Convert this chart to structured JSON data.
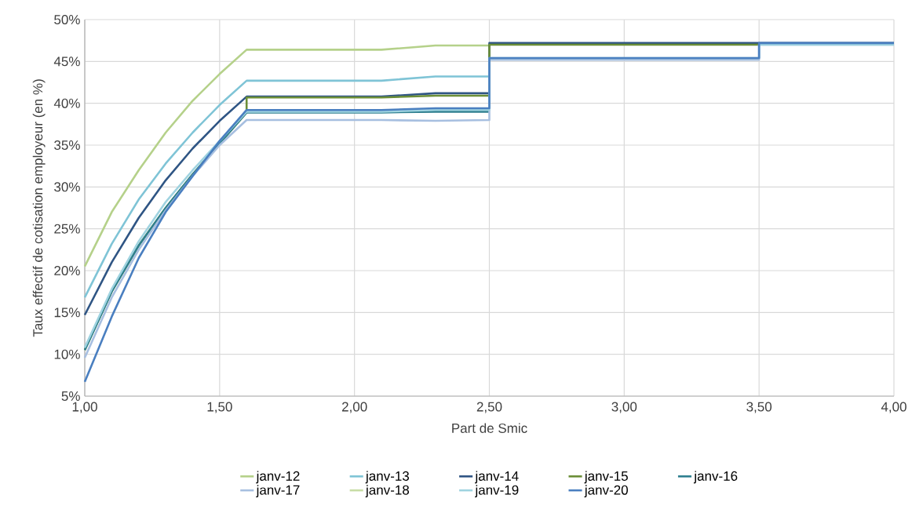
{
  "chart_data": {
    "type": "line",
    "xlabel": "Part de Smic",
    "ylabel": "Taux effectif de cotisation employeur (en %)",
    "xlim": [
      1,
      4
    ],
    "ylim": [
      5,
      50
    ],
    "xticks": [
      {
        "value": 1,
        "label": "1,00"
      },
      {
        "value": 1.5,
        "label": "1,50"
      },
      {
        "value": 2,
        "label": "2,00"
      },
      {
        "value": 2.5,
        "label": "2,50"
      },
      {
        "value": 3,
        "label": "3,00"
      },
      {
        "value": 3.5,
        "label": "3,50"
      },
      {
        "value": 4,
        "label": "4,00"
      }
    ],
    "yticks": [
      {
        "value": 5,
        "label": "5%"
      },
      {
        "value": 10,
        "label": "10%"
      },
      {
        "value": 15,
        "label": "15%"
      },
      {
        "value": 20,
        "label": "20%"
      },
      {
        "value": 25,
        "label": "25%"
      },
      {
        "value": 30,
        "label": "30%"
      },
      {
        "value": 35,
        "label": "35%"
      },
      {
        "value": 40,
        "label": "40%"
      },
      {
        "value": 45,
        "label": "45%"
      },
      {
        "value": 50,
        "label": "50%"
      }
    ],
    "grid": true,
    "legend": "bottom",
    "marker": "none",
    "line_style": "solid",
    "series": [
      {
        "name": "janv-12",
        "color": "#b5d18a",
        "x": [
          1,
          1.1,
          1.2,
          1.3,
          1.4,
          1.5,
          1.6,
          2.1,
          2.3,
          2.5
        ],
        "values": [
          20.5,
          27,
          32,
          36.5,
          40.3,
          43.5,
          46.4,
          46.4,
          46.9,
          46.9
        ]
      },
      {
        "name": "janv-13",
        "color": "#7fc4d6",
        "x": [
          1,
          1.1,
          1.2,
          1.3,
          1.4,
          1.5,
          1.6,
          2.1,
          2.3,
          2.5
        ],
        "values": [
          16.8,
          23.2,
          28.5,
          32.8,
          36.5,
          39.8,
          42.7,
          42.7,
          43.2,
          43.2
        ]
      },
      {
        "name": "janv-14",
        "color": "#2f5584",
        "x": [
          1,
          1.1,
          1.2,
          1.3,
          1.4,
          1.5,
          1.6,
          2.1,
          2.3,
          2.5,
          2.5,
          3.5,
          4
        ],
        "values": [
          14.7,
          21,
          26.3,
          30.8,
          34.6,
          37.9,
          40.8,
          40.8,
          41.2,
          41.2,
          47.2,
          47.2,
          47.2
        ]
      },
      {
        "name": "janv-15",
        "color": "#6b8e37",
        "x": [
          1,
          1.1,
          1.2,
          1.3,
          1.4,
          1.5,
          1.6,
          1.6,
          2.1,
          2.3,
          2.5,
          2.5,
          3.5
        ],
        "values": [
          10.5,
          17.5,
          23,
          27.5,
          31.5,
          35.2,
          38.9,
          40.7,
          40.7,
          40.9,
          40.9,
          47,
          47
        ]
      },
      {
        "name": "janv-16",
        "color": "#2e7f8f",
        "x": [
          1,
          1.1,
          1.2,
          1.3,
          1.4,
          1.5,
          1.6,
          2.1,
          2.3,
          2.5
        ],
        "values": [
          10.5,
          17.5,
          23,
          27.5,
          31.5,
          35.2,
          38.9,
          38.9,
          39,
          39
        ]
      },
      {
        "name": "janv-17",
        "color": "#a7bfe0",
        "x": [
          1,
          1.1,
          1.2,
          1.3,
          1.4,
          1.5,
          1.6,
          2.1,
          2.3,
          2.5,
          2.5,
          3.5,
          3.5,
          4
        ],
        "values": [
          9.6,
          16.8,
          22.5,
          27.2,
          31.3,
          35,
          38,
          38,
          37.9,
          38,
          45.2,
          45.2,
          47,
          47
        ]
      },
      {
        "name": "janv-18",
        "color": "#c8dda6",
        "values": [
          null
        ]
      },
      {
        "name": "janv-19",
        "color": "#9fd3e0",
        "x": [
          1,
          1.1,
          1.2,
          1.3,
          1.4,
          1.5,
          1.6,
          2.1,
          2.3,
          2.5,
          2.5,
          3.5,
          3.5,
          4
        ],
        "values": [
          10.8,
          17.8,
          23.5,
          28.2,
          32,
          35.5,
          39,
          39,
          39.2,
          39.2,
          45.4,
          45.4,
          47,
          47
        ]
      },
      {
        "name": "janv-20",
        "color": "#4a7fc0",
        "x": [
          1,
          1.1,
          1.2,
          1.3,
          1.4,
          1.5,
          1.6,
          2.1,
          2.3,
          2.5,
          2.5,
          3.5,
          3.5,
          4
        ],
        "values": [
          6.7,
          14.5,
          21.5,
          27,
          31.3,
          35.5,
          39.2,
          39.2,
          39.4,
          39.4,
          45.4,
          45.4,
          47.2,
          47.2
        ]
      }
    ]
  }
}
